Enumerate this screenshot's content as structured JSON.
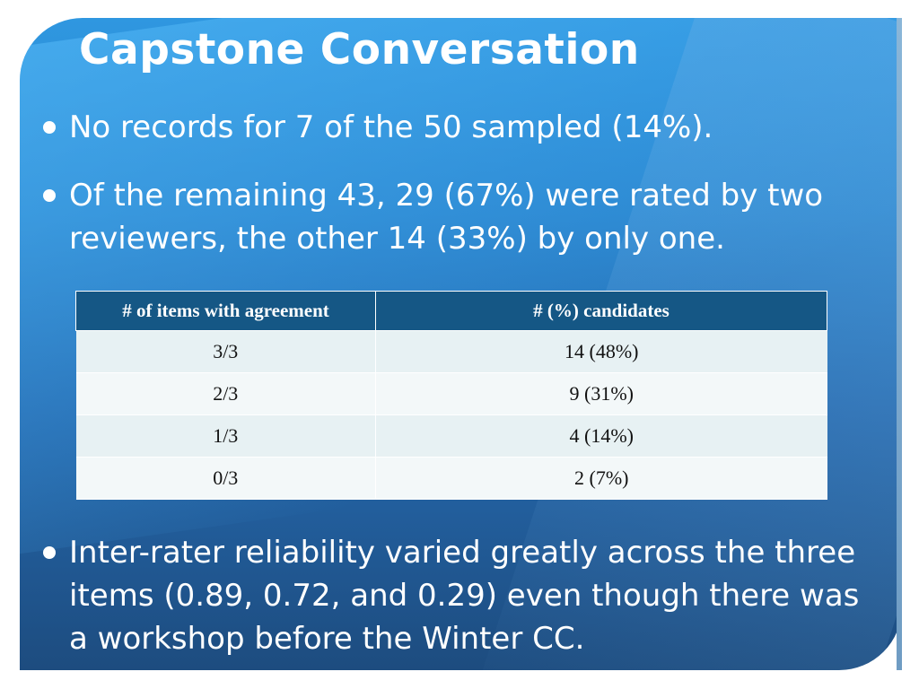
{
  "slide": {
    "title": "Capstone Conversation",
    "bullets": [
      "No records for 7 of the 50 sampled (14%).",
      "Of the remaining 43, 29 (67%) were rated by two reviewers, the other 14 (33%) by only one.",
      "Inter-rater reliability varied greatly across the three items (0.89, 0.72, and 0.29) even though there was a workshop before the Winter CC."
    ]
  },
  "table": {
    "headers": [
      "# of items with agreement",
      "# (%) candidates"
    ],
    "rows": [
      [
        "3/3",
        "14 (48%)"
      ],
      [
        "2/3",
        "9 (31%)"
      ],
      [
        "1/3",
        "4 (14%)"
      ],
      [
        "0/3",
        "2 (7%)"
      ]
    ]
  },
  "colors": {
    "header_bg": "#155785",
    "row_light": "#e7f1f3",
    "panel_top": "#2f97e0",
    "panel_bottom": "#1d4c7f"
  }
}
